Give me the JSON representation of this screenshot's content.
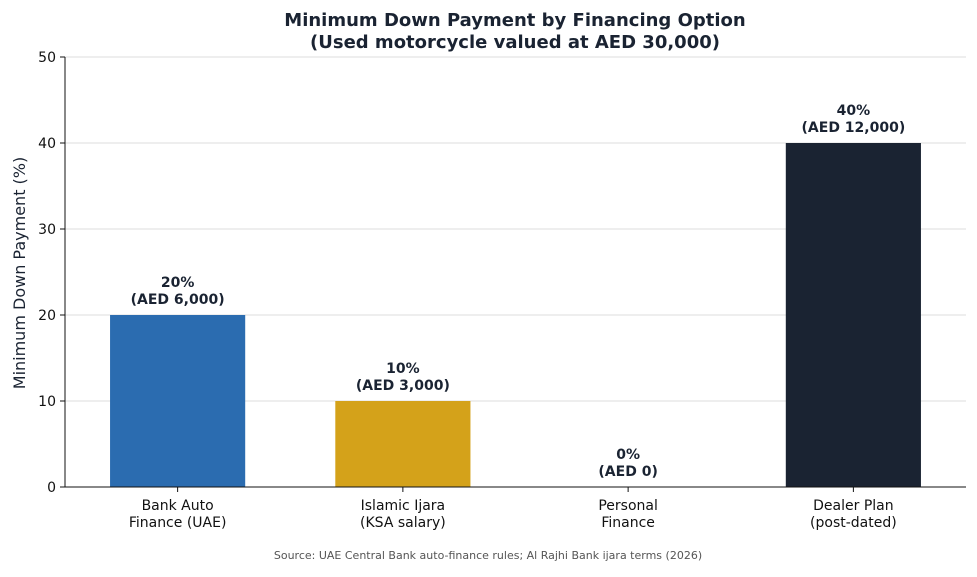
{
  "chart_data": {
    "type": "bar",
    "title": "Minimum Down Payment by Financing Option",
    "subtitle": "(Used motorcycle valued at AED 30,000)",
    "ylabel": "Minimum Down Payment (%)",
    "xlabel": "",
    "ylim": [
      0,
      50
    ],
    "yticks": [
      "0",
      "10",
      "20",
      "30",
      "40",
      "50"
    ],
    "grid": true,
    "categories": [
      [
        "Bank Auto",
        "Finance (UAE)"
      ],
      [
        "Islamic Ijara",
        "(KSA salary)"
      ],
      [
        "Personal",
        "Finance"
      ],
      [
        "Dealer Plan",
        "(post-dated)"
      ]
    ],
    "values": [
      20,
      10,
      0,
      40
    ],
    "data_labels": [
      [
        "20%",
        "(AED 6,000)"
      ],
      [
        "10%",
        "(AED 3,000)"
      ],
      [
        "0%",
        "(AED 0)"
      ],
      [
        "40%",
        "(AED 12,000)"
      ]
    ],
    "colors": [
      "#2b6cb0",
      "#d4a21a",
      "#718096",
      "#1a2332"
    ]
  },
  "source": "Source: UAE Central Bank auto-finance rules; Al Rajhi Bank ijara terms (2026)"
}
